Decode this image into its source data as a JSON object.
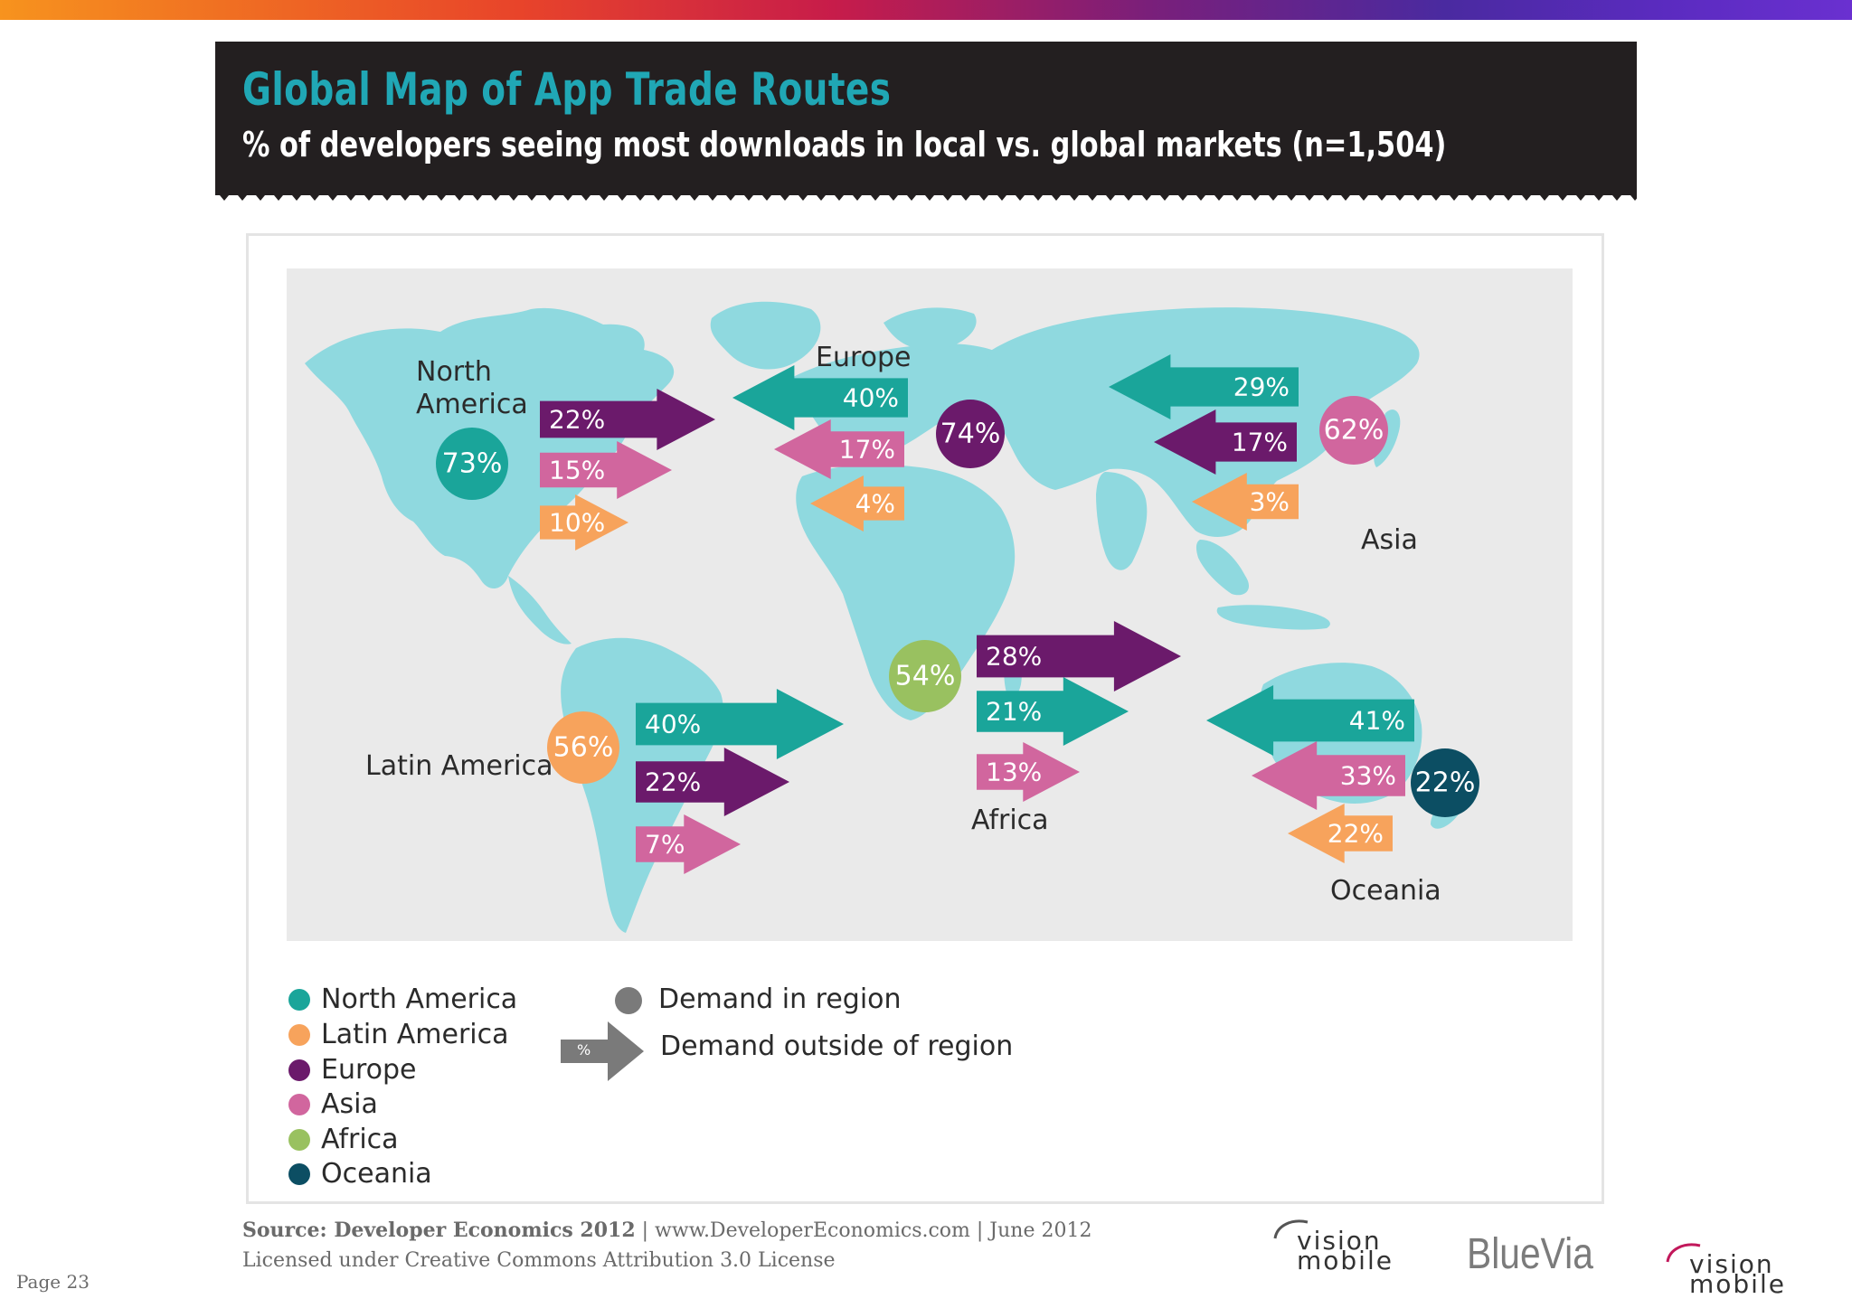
{
  "header": {
    "title": "Global Map of App Trade Routes",
    "subtitle": "% of developers seeing most downloads in local vs. global markets (n=1,504)"
  },
  "colors": {
    "north_america": "#1aa59a",
    "latin_america": "#f7a35c",
    "europe": "#6b1a6b",
    "asia": "#d1669e",
    "africa": "#99c160",
    "oceania": "#0c4e63",
    "land": "#8fd9df",
    "map_bg": "#eaeaea"
  },
  "regions": {
    "north_america": {
      "label_line1": "North",
      "label_line2": "America",
      "in_region": "73%",
      "outflows": [
        {
          "to": "europe",
          "value": "22%"
        },
        {
          "to": "asia",
          "value": "15%"
        },
        {
          "to": "latin_america",
          "value": "10%"
        }
      ]
    },
    "europe": {
      "label": "Europe",
      "in_region": "74%",
      "inflows": [
        {
          "from": "north_america",
          "value": "40%"
        },
        {
          "from": "asia",
          "value": "17%"
        },
        {
          "from": "latin_america",
          "value": "4%"
        }
      ]
    },
    "asia": {
      "label": "Asia",
      "in_region": "62%",
      "inflows": [
        {
          "from": "north_america",
          "value": "29%"
        },
        {
          "from": "europe",
          "value": "17%"
        },
        {
          "from": "latin_america",
          "value": "3%"
        }
      ]
    },
    "latin_america": {
      "label": "Latin America",
      "in_region": "56%",
      "outflows": [
        {
          "to": "north_america",
          "value": "40%"
        },
        {
          "to": "europe",
          "value": "22%"
        },
        {
          "to": "asia",
          "value": "7%"
        }
      ]
    },
    "africa": {
      "label": "Africa",
      "in_region": "54%",
      "outflows": [
        {
          "to": "europe",
          "value": "28%"
        },
        {
          "to": "north_america",
          "value": "21%"
        },
        {
          "to": "asia",
          "value": "13%"
        }
      ]
    },
    "oceania": {
      "label": "Oceania",
      "in_region": "22%",
      "inflows": [
        {
          "from": "north_america",
          "value": "41%"
        },
        {
          "from": "asia",
          "value": "33%"
        },
        {
          "from": "latin_america",
          "value": "22%"
        }
      ]
    }
  },
  "legend": {
    "items": [
      "North America",
      "Latin America",
      "Europe",
      "Asia",
      "Africa",
      "Oceania"
    ],
    "demand_in_region": "Demand in region",
    "demand_outside": "Demand outside of region",
    "arrow_symbol": "%"
  },
  "footer": {
    "source_bold": "Source: Developer Economics 2012",
    "source_rest": " | www.DeveloperEconomics.com | June 2012",
    "license": "Licensed under Creative Commons Attribution 3.0 License",
    "page": "Page 23",
    "logo_bluevia": "BlueVia",
    "logo_vision_line1": "vision",
    "logo_vision_line2": "mobile"
  }
}
